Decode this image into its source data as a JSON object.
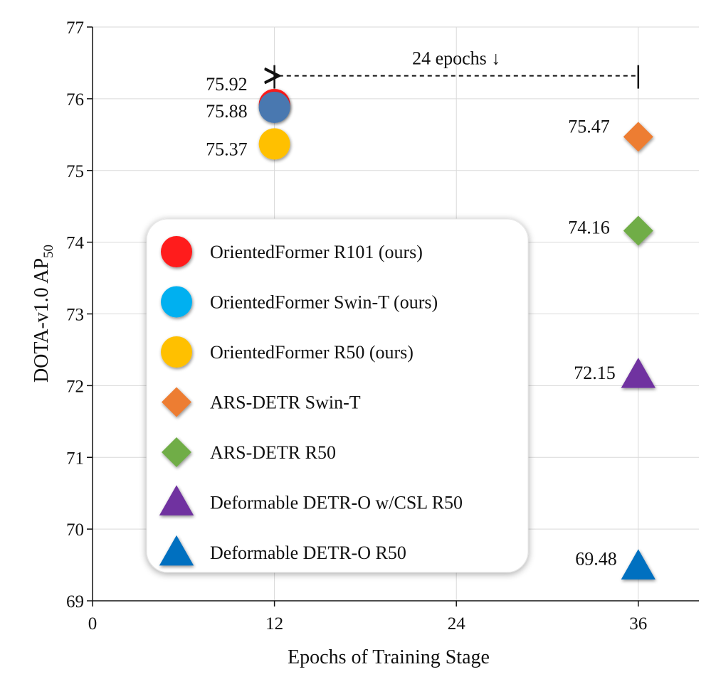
{
  "chart_data": {
    "type": "scatter",
    "xlabel": "Epochs of Training Stage",
    "ylabel_main": "DOTA-v1.0 AP",
    "ylabel_sub": "50",
    "xlim": [
      0,
      40
    ],
    "ylim": [
      69,
      77
    ],
    "xticks": [
      "0",
      "12",
      "24",
      "36"
    ],
    "yticks": [
      "69",
      "70",
      "71",
      "72",
      "73",
      "74",
      "75",
      "76",
      "77"
    ],
    "grid": true,
    "legend_position": "center-left",
    "series": [
      {
        "name": "OrientedFormer R101 (ours)",
        "marker": "circle",
        "color": "#ff1a1a",
        "x": 12,
        "y": 75.92,
        "label": "75.92"
      },
      {
        "name": "OrientedFormer Swin-T (ours)",
        "marker": "circle",
        "color": "#4a78b0",
        "legend_color": "#00b0f0",
        "x": 12,
        "y": 75.88,
        "label": "75.88"
      },
      {
        "name": "OrientedFormer R50 (ours)",
        "marker": "circle",
        "color": "#ffc000",
        "x": 12,
        "y": 75.37,
        "label": "75.37"
      },
      {
        "name": "ARS-DETR Swin-T",
        "marker": "diamond",
        "color": "#ed7d31",
        "x": 36,
        "y": 75.47,
        "label": "75.47"
      },
      {
        "name": "ARS-DETR R50",
        "marker": "diamond",
        "color": "#70ad47",
        "x": 36,
        "y": 74.16,
        "label": "74.16"
      },
      {
        "name": "Deformable DETR-O w/CSL R50",
        "marker": "triangle",
        "color": "#7030a0",
        "x": 36,
        "y": 72.15,
        "label": "72.15"
      },
      {
        "name": "Deformable DETR-O R50",
        "marker": "triangle",
        "color": "#0070c0",
        "x": 36,
        "y": 69.48,
        "label": "69.48"
      }
    ],
    "annotation": {
      "text": "24 epochs ↓",
      "from_x": 36,
      "to_x": 12,
      "y": 76.32
    }
  }
}
